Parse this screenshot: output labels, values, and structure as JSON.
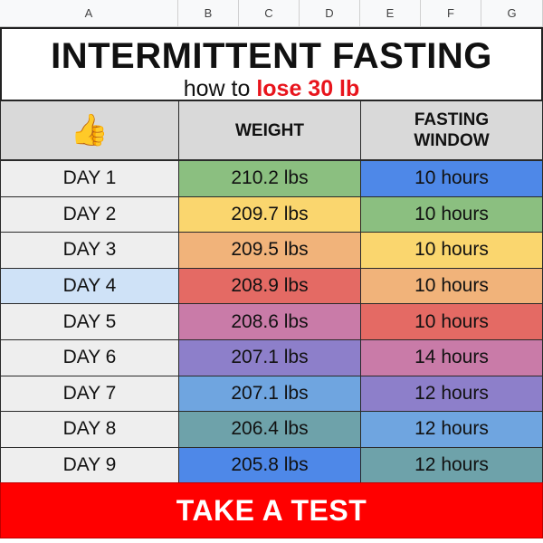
{
  "columns": [
    "A",
    "B",
    "C",
    "D",
    "E",
    "F",
    "G"
  ],
  "title": "INTERMITTENT FASTING",
  "subtitle_prefix": "how to ",
  "subtitle_highlight": "lose 30 lb",
  "header": {
    "icon": "thumbs-up-icon",
    "icon_glyph": "👍",
    "weight": "WEIGHT",
    "fasting": "FASTING\nWINDOW"
  },
  "rows": [
    {
      "day": "DAY 1",
      "weight": "210.2 lbs",
      "fasting": "10 hours",
      "weight_color": "#8bbf80",
      "fasting_color": "#4e88e8",
      "day_color": "#eeeeee"
    },
    {
      "day": "DAY 2",
      "weight": "209.7 lbs",
      "fasting": "10 hours",
      "weight_color": "#fad66e",
      "fasting_color": "#8bbf80",
      "day_color": "#eeeeee"
    },
    {
      "day": "DAY 3",
      "weight": "209.5 lbs",
      "fasting": "10 hours",
      "weight_color": "#f1b37a",
      "fasting_color": "#fad66e",
      "day_color": "#eeeeee"
    },
    {
      "day": "DAY 4",
      "weight": "208.9 lbs",
      "fasting": "10 hours",
      "weight_color": "#e46a64",
      "fasting_color": "#f1b37a",
      "day_color": "#cfe2f7"
    },
    {
      "day": "DAY 5",
      "weight": "208.6 lbs",
      "fasting": "10 hours",
      "weight_color": "#c97ba8",
      "fasting_color": "#e46a64",
      "day_color": "#eeeeee"
    },
    {
      "day": "DAY 6",
      "weight": "207.1 lbs",
      "fasting": "14 hours",
      "weight_color": "#8d7fca",
      "fasting_color": "#c97ba8",
      "day_color": "#eeeeee"
    },
    {
      "day": "DAY 7",
      "weight": "207.1 lbs",
      "fasting": "12 hours",
      "weight_color": "#6fa5e0",
      "fasting_color": "#8d7fca",
      "day_color": "#eeeeee"
    },
    {
      "day": "DAY 8",
      "weight": "206.4 lbs",
      "fasting": "12 hours",
      "weight_color": "#6ea2aa",
      "fasting_color": "#6fa5e0",
      "day_color": "#eeeeee"
    },
    {
      "day": "DAY 9",
      "weight": "205.8 lbs",
      "fasting": "12 hours",
      "weight_color": "#4e88e8",
      "fasting_color": "#6ea2aa",
      "day_color": "#eeeeee"
    }
  ],
  "cta": "TAKE A TEST"
}
